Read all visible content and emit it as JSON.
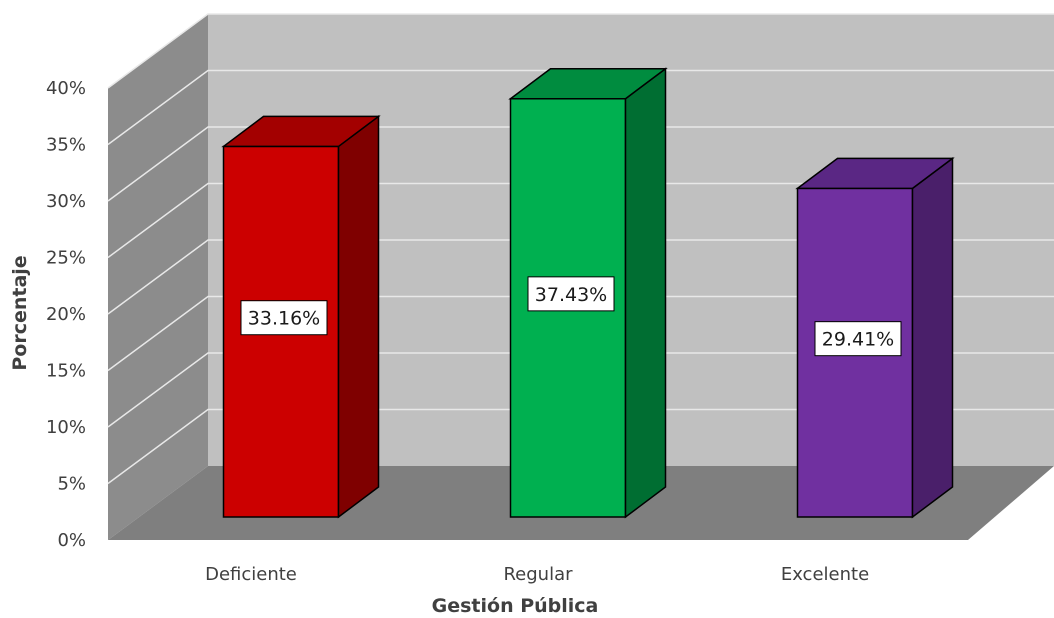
{
  "chart_data": {
    "type": "bar",
    "three_d": true,
    "title": "",
    "xlabel": "Gestión Pública",
    "ylabel": "Porcentaje",
    "categories": [
      "Deficiente",
      "Regular",
      "Excelente"
    ],
    "values": [
      33.16,
      37.43,
      29.41
    ],
    "data_labels": [
      "33.16%",
      "37.43%",
      "29.41%"
    ],
    "ylim": [
      0,
      40
    ],
    "yticks": [
      "0%",
      "5%",
      "10%",
      "15%",
      "20%",
      "25%",
      "30%",
      "35%",
      "40%"
    ],
    "grid": true,
    "legend": "none",
    "colors": [
      {
        "front": "#cc0000",
        "side": "#7f0000",
        "top": "#a30000"
      },
      {
        "front": "#00b050",
        "side": "#006e32",
        "top": "#008c3f"
      },
      {
        "front": "#7030a0",
        "side": "#4a1f6a",
        "top": "#5a2784"
      }
    ],
    "wall_colors": {
      "back": "#c0c0c0",
      "side": "#8c8c8c",
      "floor": "#7f7f7f",
      "grid": "#e8e8e8"
    }
  }
}
